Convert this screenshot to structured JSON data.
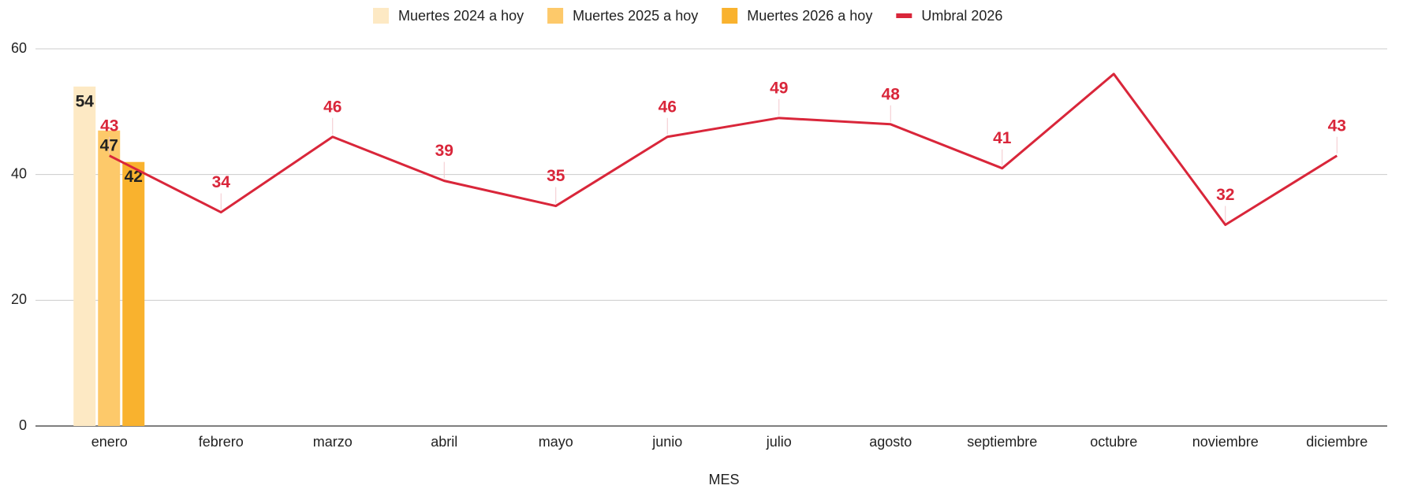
{
  "chart_data": {
    "type": "bar_line",
    "x_label": "MES",
    "categories": [
      "enero",
      "febrero",
      "marzo",
      "abril",
      "mayo",
      "junio",
      "julio",
      "agosto",
      "septiembre",
      "octubre",
      "noviembre",
      "diciembre"
    ],
    "series": [
      {
        "name": "Muertes 2024 a hoy",
        "type": "bar",
        "color": "#fde9c4",
        "values": [
          54,
          null,
          null,
          null,
          null,
          null,
          null,
          null,
          null,
          null,
          null,
          null
        ]
      },
      {
        "name": "Muertes 2025 a hoy",
        "type": "bar",
        "color": "#fdc96a",
        "values": [
          47,
          null,
          null,
          null,
          null,
          null,
          null,
          null,
          null,
          null,
          null,
          null
        ]
      },
      {
        "name": "Muertes 2026 a hoy",
        "type": "bar",
        "color": "#f9b22e",
        "values": [
          42,
          null,
          null,
          null,
          null,
          null,
          null,
          null,
          null,
          null,
          null,
          null
        ]
      },
      {
        "name": "Umbral 2026",
        "type": "line",
        "color": "#d9263a",
        "values": [
          43,
          34,
          46,
          39,
          35,
          46,
          49,
          48,
          41,
          56,
          32,
          43
        ],
        "value_labels": [
          "43",
          "34",
          "46",
          "39",
          "35",
          "46",
          "49",
          "48",
          "41",
          null,
          "32",
          "43"
        ]
      }
    ],
    "ylim": [
      0,
      60
    ],
    "yticks": [
      0,
      20,
      40,
      60
    ],
    "grid": true,
    "legend": "top"
  }
}
